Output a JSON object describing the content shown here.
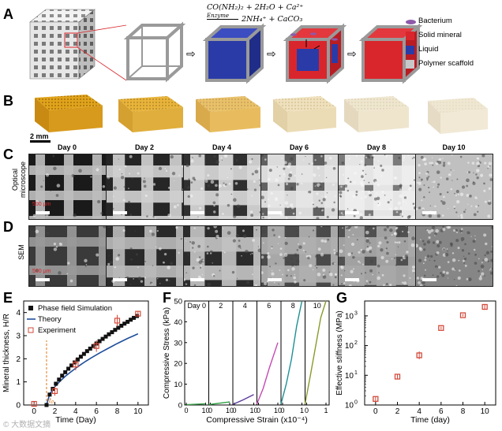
{
  "panels": {
    "A": "A",
    "B": "B",
    "C": "C",
    "D": "D",
    "E": "E",
    "F": "F",
    "G": "G"
  },
  "panel_a": {
    "equation_line1": "CO(NH₂)₂ + 2H₂O + Ca²⁺",
    "equation_enzyme": "Enzyme",
    "equation_line2": "2NH₄⁺ + CaCO₃",
    "legend": [
      {
        "label": "Bacterium",
        "color": "#8e5aa8"
      },
      {
        "label": "Solid mineral",
        "color": "#d9262c"
      },
      {
        "label": "Liquid",
        "color": "#2a3ba8"
      },
      {
        "label": "Polymer scaffold",
        "color": "#c8c8c8"
      }
    ]
  },
  "panel_b": {
    "scale": "2 mm"
  },
  "panel_c": {
    "days": [
      "Day 0",
      "Day 2",
      "Day 4",
      "Day 6",
      "Day 8",
      "Day 10"
    ],
    "row_label_line1": "Optical",
    "row_label_line2": "microscope",
    "scale": "500 μm"
  },
  "panel_d": {
    "row_label": "SEM",
    "scale": "500 μm"
  },
  "chart_data": [
    {
      "panel": "E",
      "type": "line",
      "xlabel": "Time (Day)",
      "ylabel": "Mineral thickness, H/R",
      "xlim": [
        -1,
        11
      ],
      "ylim": [
        0,
        4.5
      ],
      "xticks": [
        0,
        2,
        4,
        6,
        8,
        10
      ],
      "yticks": [
        0,
        1,
        2,
        3,
        4
      ],
      "annotation": "t₀",
      "annotation_x": 1.2,
      "legend": [
        "Phase field Simulation",
        "Theory",
        "Experiment"
      ],
      "series": [
        {
          "name": "Phase field Simulation",
          "x": [
            1.2,
            1.5,
            1.8,
            2.1,
            2.4,
            2.7,
            3.0,
            3.3,
            3.6,
            3.9,
            4.2,
            4.5,
            4.8,
            5.1,
            5.4,
            5.7,
            6.0,
            6.3,
            6.6,
            6.9,
            7.2,
            7.5,
            7.8,
            8.1,
            8.4,
            8.7,
            9.0,
            9.3,
            9.6,
            9.9
          ],
          "y": [
            0.0,
            0.45,
            0.7,
            0.92,
            1.1,
            1.27,
            1.42,
            1.57,
            1.71,
            1.84,
            1.97,
            2.09,
            2.21,
            2.33,
            2.44,
            2.55,
            2.66,
            2.76,
            2.86,
            2.96,
            3.06,
            3.15,
            3.25,
            3.34,
            3.43,
            3.52,
            3.6,
            3.69,
            3.77,
            3.85
          ]
        },
        {
          "name": "Theory",
          "x": [
            1.2,
            1.5,
            2,
            2.5,
            3,
            3.5,
            4,
            4.5,
            5,
            5.5,
            6,
            6.5,
            7,
            7.5,
            8,
            8.5,
            9,
            9.5,
            10
          ],
          "y": [
            0,
            0.47,
            0.79,
            1.03,
            1.24,
            1.42,
            1.59,
            1.75,
            1.9,
            2.04,
            2.17,
            2.3,
            2.42,
            2.54,
            2.66,
            2.77,
            2.88,
            2.98,
            3.08
          ]
        },
        {
          "name": "Experiment",
          "x": [
            0,
            2,
            4,
            6,
            8,
            10
          ],
          "y": [
            0.05,
            0.6,
            1.75,
            2.55,
            3.65,
            3.95
          ],
          "err": [
            0.05,
            0.2,
            0.25,
            0.25,
            0.25,
            0.1
          ]
        }
      ]
    },
    {
      "panel": "F",
      "type": "line",
      "xlabel": "Compressive Strain (x10⁻⁴)",
      "ylabel": "Compressive Stress (kPa)",
      "ylim": [
        0,
        50
      ],
      "yticks": [
        0,
        10,
        20,
        30,
        40,
        50
      ],
      "subplots": [
        {
          "label": "Day 0",
          "xticks": [
            0,
            10
          ],
          "color": "#3aa14a",
          "x": [
            0,
            10
          ],
          "y": [
            0.1,
            0.6
          ]
        },
        {
          "label": "2",
          "xticks": [
            0,
            10
          ],
          "color": "#2ea043",
          "x": [
            0,
            10
          ],
          "y": [
            0.2,
            1.5
          ]
        },
        {
          "label": "4",
          "xticks": [
            0,
            10
          ],
          "color": "#5b3b9b",
          "x": [
            0,
            5,
            10
          ],
          "y": [
            0.3,
            2.5,
            5
          ]
        },
        {
          "label": "6",
          "xticks": [
            0,
            10
          ],
          "color": "#c54ab4",
          "x": [
            0,
            3,
            6,
            10
          ],
          "y": [
            0.5,
            8,
            18,
            30
          ]
        },
        {
          "label": "8",
          "xticks": [
            0,
            1
          ],
          "color": "#1f8f95",
          "x": [
            0,
            0.25,
            0.5,
            0.75,
            1.0
          ],
          "y": [
            0.5,
            10,
            22,
            38,
            50
          ]
        },
        {
          "label": "10",
          "xticks": [
            0,
            1
          ],
          "color": "#8a9a2a",
          "x": [
            0,
            0.25,
            0.5,
            0.75,
            1.0
          ],
          "y": [
            0.5,
            14,
            28,
            42,
            50
          ]
        }
      ]
    },
    {
      "panel": "G",
      "type": "scatter",
      "xlabel": "Time (day)",
      "ylabel": "Effective stiffness (MPa)",
      "xlim": [
        -1,
        11
      ],
      "ylim_log10": [
        0,
        3.5
      ],
      "xticks": [
        0,
        2,
        4,
        6,
        8,
        10
      ],
      "yticks_exp": [
        0,
        1,
        2,
        3
      ],
      "y_scale": "log",
      "x": [
        0,
        2,
        4,
        6,
        8,
        10
      ],
      "y": [
        1.6,
        9,
        47,
        390,
        1050,
        2000
      ],
      "err_factor": [
        1.15,
        1.2,
        1.35,
        1.12,
        1.1,
        1.25
      ]
    }
  ],
  "watermark": "© 大数据文摘"
}
